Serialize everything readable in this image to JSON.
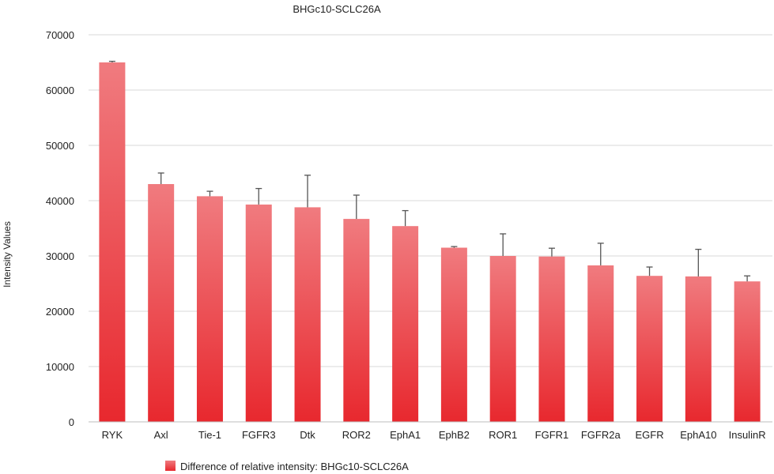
{
  "chart_data": {
    "type": "bar",
    "title": "BHGc10-SCLC26A",
    "xlabel": "",
    "ylabel": "Intensity Values",
    "ylim": [
      0,
      70000
    ],
    "ytick_step": 10000,
    "yticks": [
      "0",
      "10000",
      "20000",
      "30000",
      "40000",
      "50000",
      "60000",
      "70000"
    ],
    "grid": true,
    "legend_position": "bottom",
    "categories": [
      "RYK",
      "Axl",
      "Tie-1",
      "FGFR3",
      "Dtk",
      "ROR2",
      "EphA1",
      "EphB2",
      "ROR1",
      "FGFR1",
      "FGFR2a",
      "EGFR",
      "EphA10",
      "InsulinR"
    ],
    "series": [
      {
        "name": "Difference of relative intensity: BHGc10-SCLC26A",
        "values": [
          65000,
          43000,
          40800,
          39300,
          38800,
          36700,
          35400,
          31500,
          30000,
          29900,
          28300,
          26400,
          26300,
          25400
        ],
        "errors": [
          200,
          2000,
          900,
          2900,
          5800,
          4300,
          2800,
          200,
          4000,
          1500,
          4000,
          1600,
          4900,
          1000
        ]
      }
    ],
    "colors": {
      "bar_top": "#f07b7f",
      "bar_bottom": "#e8282e",
      "error_bar": "#555555",
      "grid": "#d9d9d9"
    }
  }
}
